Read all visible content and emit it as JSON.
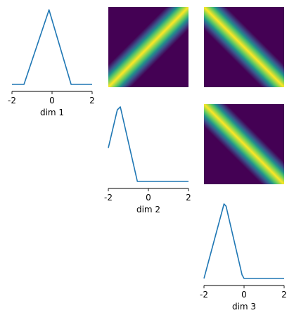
{
  "chart_data": {
    "type": "pairplot",
    "dims": 3,
    "line_color": "#1f77b4",
    "colormap": "viridis",
    "colormap_low": "#440154",
    "colormap_high": "#fde725",
    "diagonal": [
      {
        "xlabel": "dim 1",
        "xlim": [
          -2,
          2
        ],
        "xticks": [
          "-2",
          "0",
          "2"
        ],
        "x": [
          -2.0,
          -1.4,
          -0.15,
          0.95,
          2.0
        ],
        "y": [
          0.0,
          0.0,
          1.0,
          0.0,
          0.0
        ]
      },
      {
        "xlabel": "dim 2",
        "xlim": [
          -2,
          2
        ],
        "xticks": [
          "-2",
          "0",
          "2"
        ],
        "x": [
          -2.0,
          -1.55,
          -1.4,
          -0.55,
          2.0
        ],
        "y": [
          0.45,
          0.96,
          1.0,
          0.0,
          0.0
        ]
      },
      {
        "xlabel": "dim 3",
        "xlim": [
          -2,
          2
        ],
        "xticks": [
          "-2",
          "0",
          "2"
        ],
        "x": [
          -2.0,
          -1.0,
          -0.9,
          -0.1,
          0.0,
          2.0
        ],
        "y": [
          0.0,
          1.0,
          0.97,
          0.05,
          0.0,
          0.0
        ]
      }
    ],
    "offdiagonal": [
      {
        "row": 0,
        "col": 1,
        "orientation": "descending",
        "band_width": 0.14
      },
      {
        "row": 0,
        "col": 2,
        "orientation": "ascending",
        "band_width": 0.14
      },
      {
        "row": 1,
        "col": 2,
        "orientation": "ascending",
        "band_width": 0.14
      }
    ]
  }
}
